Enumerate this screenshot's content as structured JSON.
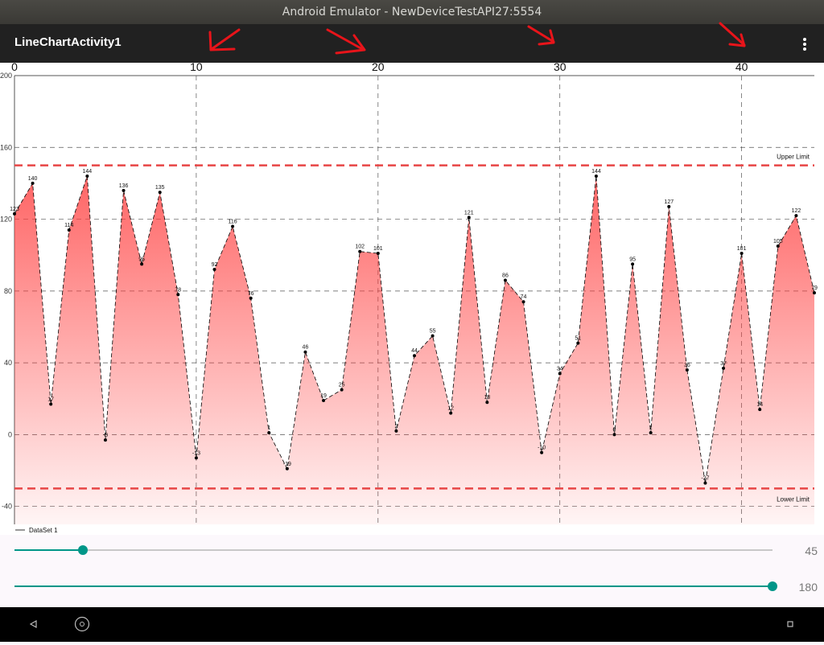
{
  "window": {
    "title": "Android Emulator - NewDeviceTestAPI27:5554"
  },
  "app_bar": {
    "title": "LineChartActivity1"
  },
  "chart_data": {
    "type": "line",
    "x": [
      0,
      1,
      2,
      3,
      4,
      5,
      6,
      7,
      8,
      9,
      10,
      11,
      12,
      13,
      14,
      15,
      16,
      17,
      18,
      19,
      20,
      21,
      22,
      23,
      24,
      25,
      26,
      27,
      28,
      29,
      30,
      31,
      32,
      33,
      34,
      35,
      36,
      37,
      38,
      39,
      40,
      41,
      42,
      43,
      44
    ],
    "series": [
      {
        "name": "DataSet 1",
        "color": "#000000",
        "fill_color": "#ff3b3b",
        "values": [
          123,
          140,
          17,
          114,
          144,
          -3,
          136,
          95,
          135,
          78,
          -13,
          92,
          116,
          76,
          1,
          -19,
          46,
          19,
          25,
          102,
          101,
          2,
          44,
          55,
          12,
          121,
          18,
          86,
          74,
          -10,
          34,
          51,
          144,
          0,
          95,
          1,
          127,
          36,
          -27,
          37,
          101,
          14,
          105,
          122,
          79
        ]
      }
    ],
    "xlim": [
      0,
      44
    ],
    "xticks": [
      0,
      10,
      20,
      30,
      40
    ],
    "ylim": [
      -50,
      200
    ],
    "yticks": [
      -40,
      0,
      40,
      80,
      120,
      160,
      200
    ],
    "grid": true,
    "limit_lines": [
      {
        "label": "Upper Limit",
        "value": 150,
        "color": "#e84545"
      },
      {
        "label": "Lower Limit",
        "value": -30,
        "color": "#e84545"
      }
    ]
  },
  "sliders": [
    {
      "value": 45
    },
    {
      "value": 180
    }
  ]
}
